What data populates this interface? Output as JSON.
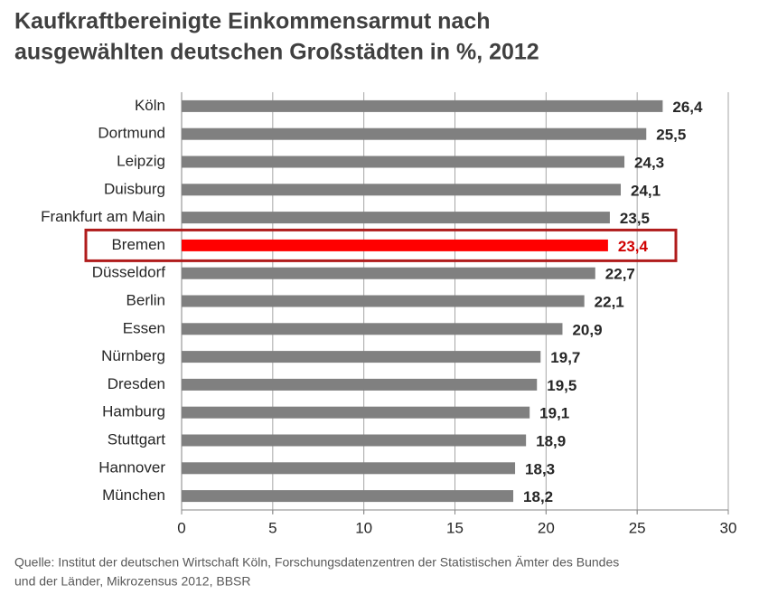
{
  "chart_data": {
    "type": "hbar",
    "title": [
      "Kaufkraftbereinigte Einkommensarmut nach",
      "ausgewählten deutschen Großstädten in %, 2012"
    ],
    "categories": [
      "Köln",
      "Dortmund",
      "Leipzig",
      "Duisburg",
      "Frankfurt am Main",
      "Bremen",
      "Düsseldorf",
      "Berlin",
      "Essen",
      "Nürnberg",
      "Dresden",
      "Hamburg",
      "Stuttgart",
      "Hannover",
      "München"
    ],
    "values": [
      26.4,
      25.5,
      24.3,
      24.1,
      23.5,
      23.4,
      22.7,
      22.1,
      20.9,
      19.7,
      19.5,
      19.1,
      18.9,
      18.3,
      18.2
    ],
    "value_labels": [
      "26,4",
      "25,5",
      "24,3",
      "24,1",
      "23,5",
      "23,4",
      "22,7",
      "22,1",
      "20,9",
      "19,7",
      "19,5",
      "19,1",
      "18,9",
      "18,3",
      "18,2"
    ],
    "colors": [
      "#808080",
      "#808080",
      "#808080",
      "#808080",
      "#808080",
      "#ff0000",
      "#808080",
      "#808080",
      "#808080",
      "#808080",
      "#808080",
      "#808080",
      "#808080",
      "#808080",
      "#808080"
    ],
    "label_colors": [
      "#262626",
      "#262626",
      "#262626",
      "#262626",
      "#262626",
      "#d00000",
      "#262626",
      "#262626",
      "#262626",
      "#262626",
      "#262626",
      "#262626",
      "#262626",
      "#262626",
      "#262626"
    ],
    "highlight": 5,
    "highlight_color": "#b01c1c",
    "xlim": [
      0,
      30
    ],
    "xticks": [
      0,
      5,
      10,
      15,
      20,
      25,
      30
    ],
    "grid": true,
    "source": [
      "Quelle:   Institut der deutschen Wirtschaft Köln, Forschungsdatenzentren  der Statistischen  Ämter des Bundes",
      "und der Länder, Mikrozensus  2012, BBSR"
    ]
  }
}
